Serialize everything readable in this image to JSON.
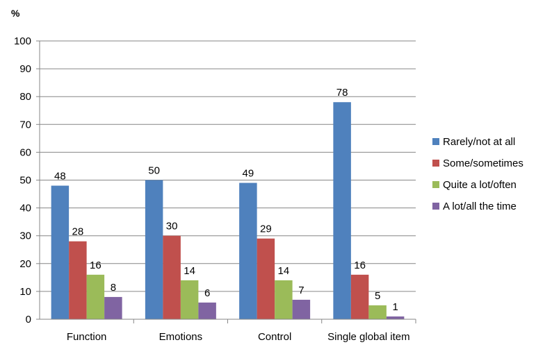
{
  "chart_data": {
    "type": "bar",
    "title": "",
    "xlabel": "",
    "ylabel": "%",
    "ylim": [
      0,
      100
    ],
    "yticks": [
      0,
      10,
      20,
      30,
      40,
      50,
      60,
      70,
      80,
      90,
      100
    ],
    "grid": true,
    "legend_position": "right",
    "categories": [
      "Function",
      "Emotions",
      "Control",
      "Single global item"
    ],
    "series": [
      {
        "name": "Rarely/not at all",
        "color": "#4F81BD",
        "values": [
          48,
          50,
          49,
          78
        ]
      },
      {
        "name": "Some/sometimes",
        "color": "#C0504D",
        "values": [
          28,
          30,
          29,
          16
        ]
      },
      {
        "name": "Quite a lot/often",
        "color": "#9BBB59",
        "values": [
          16,
          14,
          14,
          5
        ]
      },
      {
        "name": "A lot/all the time",
        "color": "#8064A2",
        "values": [
          8,
          6,
          7,
          1
        ]
      }
    ]
  }
}
